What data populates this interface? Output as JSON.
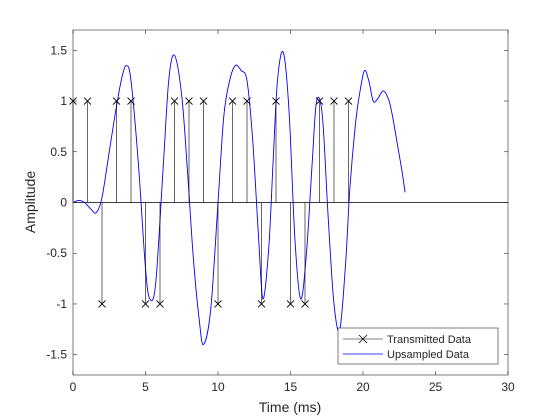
{
  "chart_data": {
    "type": "line",
    "title": "",
    "xlabel": "Time (ms)",
    "ylabel": "Amplitude",
    "xlim": [
      0,
      30
    ],
    "ylim": [
      -1.7,
      1.7
    ],
    "xticks": [
      0,
      5,
      10,
      15,
      20,
      25,
      30
    ],
    "yticks": [
      -1.5,
      -1,
      -0.5,
      0,
      0.5,
      1,
      1.5
    ],
    "xtick_labels": [
      "0",
      "5",
      "10",
      "15",
      "20",
      "25",
      "30"
    ],
    "ytick_labels": [
      "-1.5",
      "-1",
      "-0.5",
      "0",
      "0.5",
      "1",
      "1.5"
    ],
    "grid": false,
    "legend_position": "bottom-right",
    "series": [
      {
        "name": "Transmitted Data",
        "style": "stem",
        "marker": "x",
        "color": "#000000",
        "x": [
          0,
          1,
          2,
          3,
          4,
          5,
          6,
          7,
          8,
          9,
          10,
          11,
          12,
          13,
          14,
          15,
          16,
          17,
          18,
          19
        ],
        "y": [
          1,
          1,
          -1,
          1,
          1,
          -1,
          -1,
          1,
          1,
          1,
          -1,
          1,
          1,
          -1,
          1,
          -1,
          -1,
          1,
          1,
          1
        ]
      },
      {
        "name": "Upsampled Data",
        "style": "line",
        "color": "#0000ff",
        "x": [
          0,
          0.4,
          0.8,
          1.2,
          1.6,
          2.0,
          2.5,
          3.0,
          3.4,
          3.7,
          4.0,
          4.5,
          5.0,
          5.3,
          5.7,
          6.2,
          6.6,
          7.0,
          7.5,
          7.9,
          8.3,
          8.7,
          9.0,
          9.5,
          10.0,
          10.4,
          10.8,
          11.2,
          11.6,
          12.0,
          12.4,
          12.8,
          13.1,
          13.5,
          13.8,
          14.1,
          14.5,
          14.9,
          15.3,
          15.7,
          16.1,
          16.5,
          16.8,
          17.2,
          17.6,
          18.0,
          18.4,
          18.8,
          19.1,
          19.5,
          19.8,
          20.1,
          20.4,
          20.7,
          21.0,
          21.4,
          21.8,
          22.1,
          22.4,
          22.7,
          22.9
        ],
        "y": [
          0.0,
          0.02,
          0.0,
          -0.06,
          -0.1,
          0.05,
          0.5,
          0.95,
          1.25,
          1.35,
          1.2,
          0.4,
          -0.65,
          -0.95,
          -0.8,
          0.3,
          1.2,
          1.45,
          1.05,
          0.3,
          -0.55,
          -1.15,
          -1.4,
          -1.05,
          0.0,
          0.85,
          1.2,
          1.35,
          1.3,
          1.2,
          0.6,
          -0.35,
          -0.95,
          -0.45,
          0.4,
          1.2,
          1.48,
          0.9,
          -0.35,
          -0.95,
          -0.5,
          0.4,
          1.0,
          0.85,
          -0.15,
          -1.0,
          -1.25,
          -0.6,
          0.15,
          0.8,
          1.1,
          1.3,
          1.2,
          1.0,
          1.02,
          1.1,
          1.0,
          0.8,
          0.55,
          0.3,
          0.1
        ]
      }
    ]
  }
}
